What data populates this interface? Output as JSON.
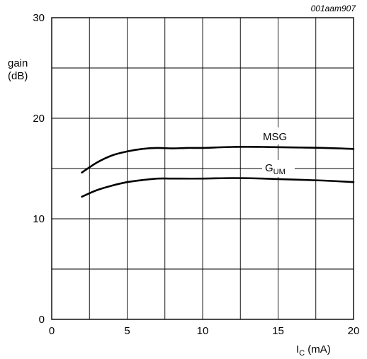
{
  "chart_data": {
    "type": "line",
    "ref": "001aam907",
    "ylabel_line1": "gain",
    "ylabel_line2": "(dB)",
    "xlabel_main": "I",
    "xlabel_sub": "C",
    "xlabel_unit": " (mA)",
    "xlim": [
      0,
      20
    ],
    "ylim": [
      0,
      30
    ],
    "xticks": [
      0,
      5,
      10,
      15,
      20
    ],
    "yticks": [
      0,
      10,
      20,
      30
    ],
    "grid": true,
    "series": [
      {
        "name": "MSG",
        "x": [
          2,
          3,
          4,
          5,
          6,
          7,
          8,
          9,
          10,
          12,
          14,
          16,
          18,
          20
        ],
        "values": [
          14.6,
          15.6,
          16.3,
          16.7,
          16.95,
          17.05,
          17.0,
          17.05,
          17.05,
          17.15,
          17.15,
          17.1,
          17.05,
          16.95
        ]
      },
      {
        "name": "G",
        "name_sub": "UM",
        "x": [
          2,
          3,
          4,
          5,
          6,
          7,
          8,
          10,
          12,
          14,
          16,
          18,
          20
        ],
        "values": [
          12.2,
          12.85,
          13.3,
          13.65,
          13.85,
          14.0,
          14.0,
          14.0,
          14.05,
          14.0,
          13.9,
          13.8,
          13.65
        ]
      }
    ]
  }
}
